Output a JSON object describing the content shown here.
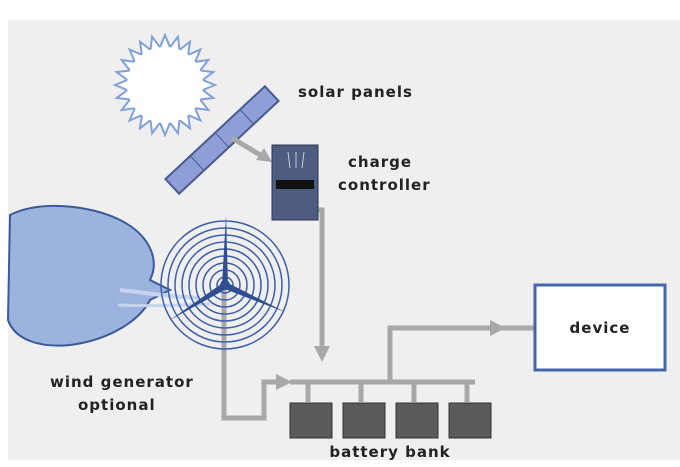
{
  "labels": {
    "solar_panels": "solar panels",
    "charge_controller": [
      "charge",
      "controller"
    ],
    "wind_generator": [
      "wind generator",
      "optional"
    ],
    "device": "device",
    "battery_bank": "battery bank"
  }
}
